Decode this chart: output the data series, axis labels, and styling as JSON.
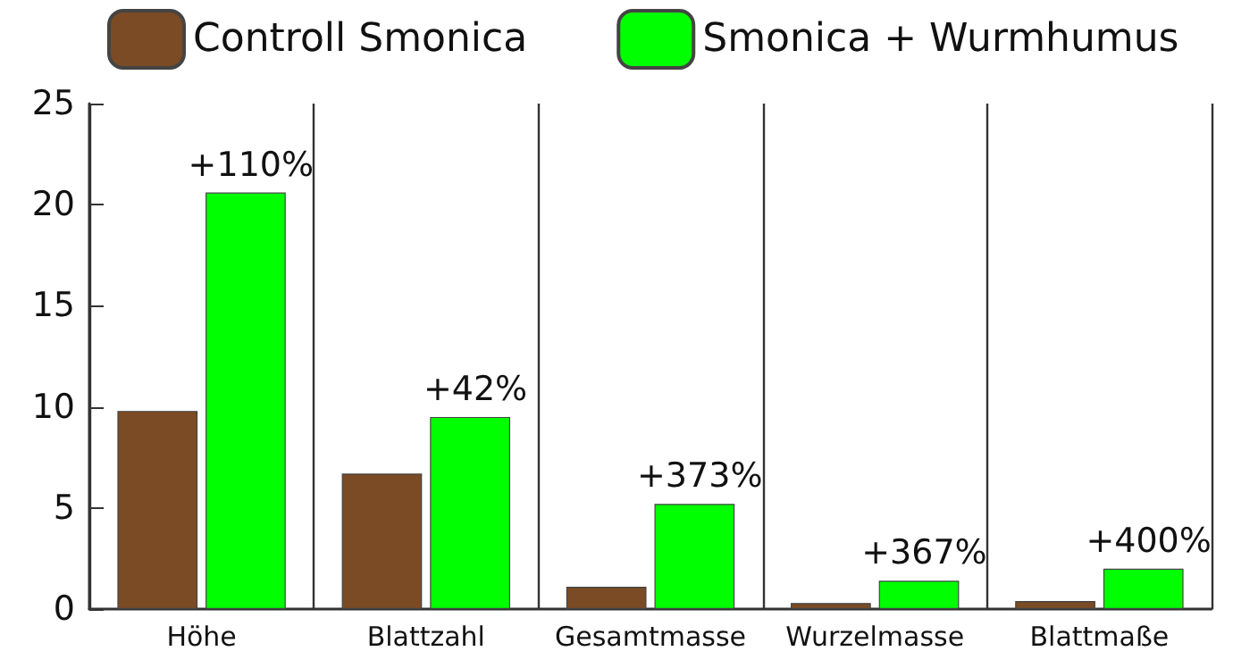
{
  "chart_data": {
    "type": "bar",
    "categories": [
      "Höhe",
      "Blattzahl",
      "Gesamtmasse",
      "Wurzelmasse",
      "Blattmaße"
    ],
    "series": [
      {
        "name": "Controll Smonica",
        "color": "#7a4b24",
        "values": [
          9.8,
          6.7,
          1.1,
          0.3,
          0.4
        ]
      },
      {
        "name": "Smonica + Wurmhumus",
        "color": "#00ff00",
        "values": [
          20.6,
          9.5,
          5.2,
          1.4,
          2.0
        ]
      }
    ],
    "ylim": [
      0,
      25
    ],
    "yticks": [
      0,
      5,
      10,
      15,
      20,
      25
    ],
    "grid": "x",
    "legend": "top",
    "annotations": [
      {
        "text": "+110%",
        "x": "Höhe",
        "y": 20.6
      },
      {
        "text": "+42%",
        "x": "Blattzahl",
        "y": 9.5
      },
      {
        "text": "+373%",
        "x": "Gesamtmasse",
        "y": 5.2
      },
      {
        "text": "+367%",
        "x": "Wurzelmasse",
        "y": 1.4
      },
      {
        "text": "+400%",
        "x": "Blattmaße",
        "y": 2.0
      }
    ]
  }
}
